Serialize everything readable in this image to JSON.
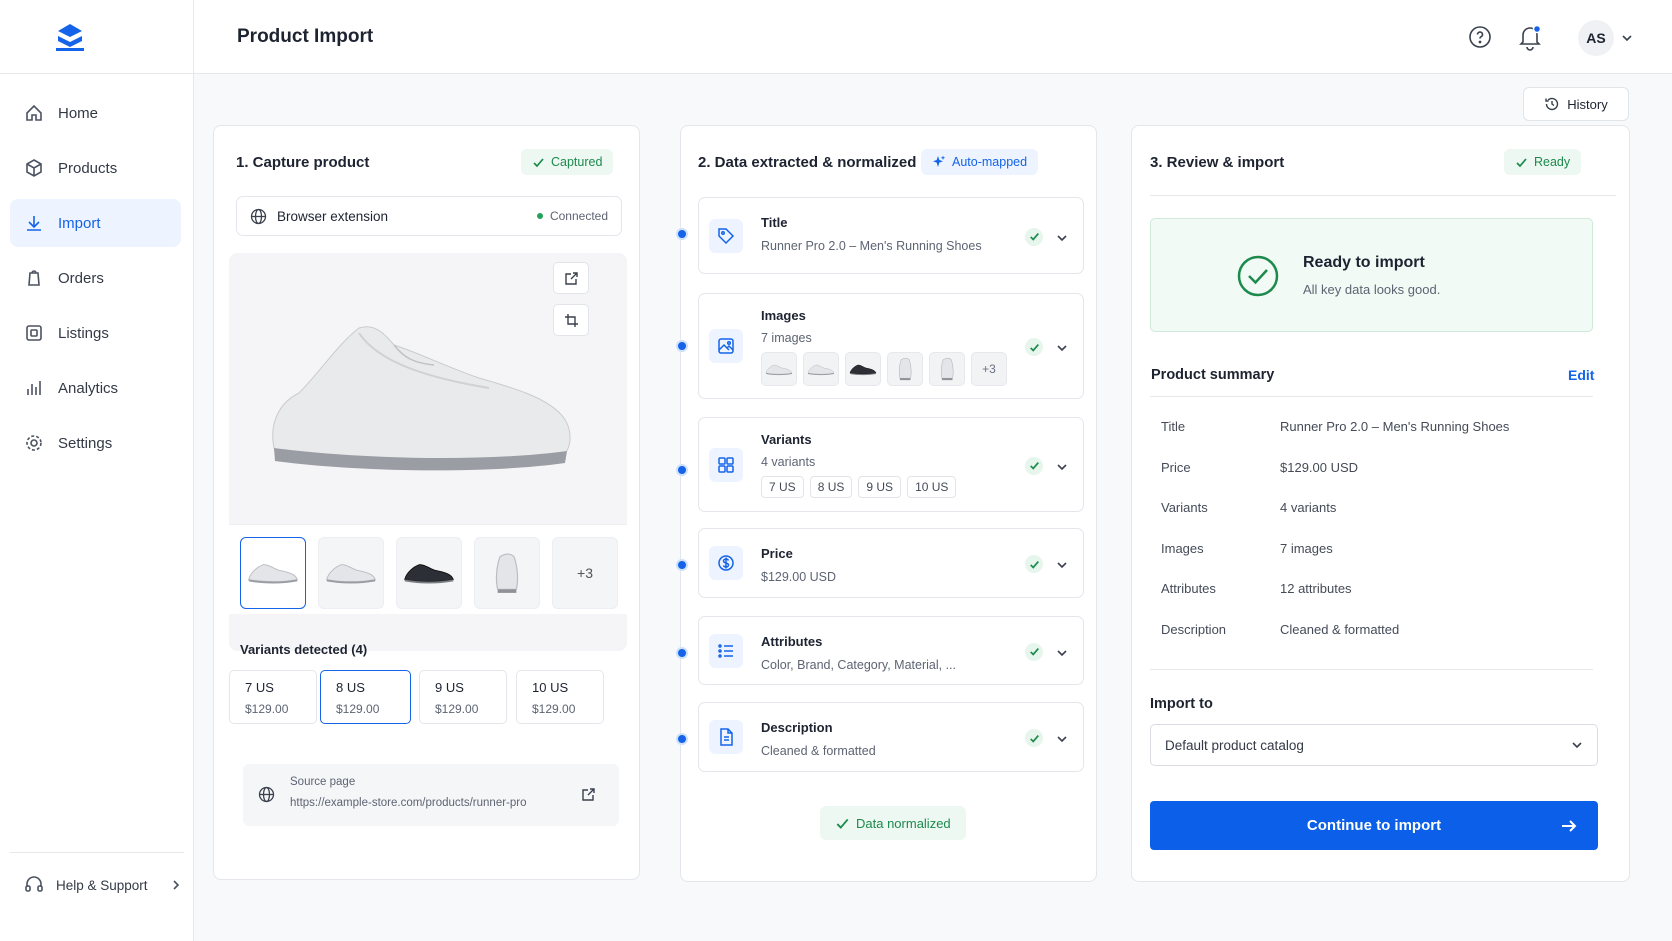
{
  "header": {
    "title": "Product Import",
    "user_initials": "AS",
    "history": "History"
  },
  "sidebar": {
    "nav": [
      "Home",
      "Products",
      "Import",
      "Orders",
      "Listings",
      "Analytics",
      "Settings"
    ],
    "help": "Help & Support"
  },
  "capture": {
    "title": "1. Capture product",
    "status": "Captured",
    "source_type": "Browser extension",
    "connection": "Connected",
    "more_images": "+3",
    "variants_heading": "Variants detected (4)",
    "variants": [
      {
        "size": "7 US",
        "price": "$129.00"
      },
      {
        "size": "8 US",
        "price": "$129.00"
      },
      {
        "size": "9 US",
        "price": "$129.00"
      },
      {
        "size": "10 US",
        "price": "$129.00"
      }
    ],
    "source_label": "Source page",
    "source_url": "https://example-store.com/products/runner-pro"
  },
  "extraction": {
    "title": "2. Data extracted & normalized",
    "badge": "Auto-mapped",
    "fields": [
      {
        "label": "Title",
        "value": "Runner Pro 2.0 – Men's Running Shoes"
      },
      {
        "label": "Images",
        "value": "7 images",
        "more": "+3"
      },
      {
        "label": "Variants",
        "value": "4 variants",
        "chips": [
          "7 US",
          "8 US",
          "9 US",
          "10 US"
        ]
      },
      {
        "label": "Price",
        "value": "$129.00 USD"
      },
      {
        "label": "Attributes",
        "value": "Color, Brand, Category, Material, ..."
      },
      {
        "label": "Description",
        "value": "Cleaned & formatted"
      }
    ],
    "footer": "Data normalized"
  },
  "review": {
    "title": "3. Review & import",
    "status": "Ready",
    "ready_title": "Ready to import",
    "ready_text": "All key data looks good.",
    "summary_title": "Product summary",
    "edit": "Edit",
    "summary": [
      [
        "Title",
        "Runner Pro 2.0 – Men's Running Shoes"
      ],
      [
        "Price",
        "$129.00 USD"
      ],
      [
        "Variants",
        "4 variants"
      ],
      [
        "Images",
        "7 images"
      ],
      [
        "Attributes",
        "12 attributes"
      ],
      [
        "Description",
        "Cleaned & formatted"
      ]
    ],
    "import_to_label": "Import to",
    "catalog": "Default product catalog",
    "cta": "Continue to import"
  }
}
